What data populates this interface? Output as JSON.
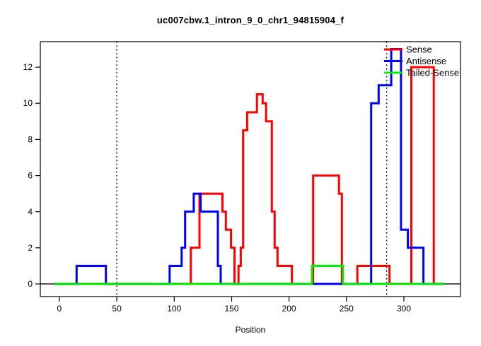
{
  "chart_data": {
    "type": "line",
    "subtype": "step-after",
    "title": "uc007cbw.1_intron_9_0_chr1_94815904_f",
    "xlabel": "Position",
    "ylabel": "",
    "x_ticks": [
      0,
      50,
      100,
      150,
      200,
      250,
      300
    ],
    "y_ticks": [
      0,
      2,
      4,
      6,
      8,
      10,
      12
    ],
    "xlim": [
      -16.6,
      349.3
    ],
    "ylim": [
      -0.7,
      13.41
    ],
    "x_start": -4.5,
    "x_end": 335.5,
    "grid": false,
    "zero_line": true,
    "guide_lines": {
      "style": "dotted",
      "color": "#000000",
      "x_values": [
        50,
        285
      ]
    },
    "legend": {
      "position": "top-right",
      "entries": [
        {
          "label": "Sense",
          "color": "#ff0000"
        },
        {
          "label": "Antisense",
          "color": "#0000ff"
        },
        {
          "label": "Tailed-Sense",
          "color": "#00ee00"
        }
      ]
    },
    "series": [
      {
        "name": "Sense",
        "color": "#ff0000",
        "steps": [
          [
            -4.5,
            0
          ],
          [
            114.5,
            2
          ],
          [
            122,
            5
          ],
          [
            142,
            4
          ],
          [
            145,
            3
          ],
          [
            149.5,
            2
          ],
          [
            152.5,
            0
          ],
          [
            156,
            1
          ],
          [
            158,
            2
          ],
          [
            160,
            8.5
          ],
          [
            163.5,
            9.5
          ],
          [
            172,
            10.5
          ],
          [
            177,
            10
          ],
          [
            180,
            9
          ],
          [
            185,
            4
          ],
          [
            187.5,
            2
          ],
          [
            190,
            1
          ],
          [
            202.5,
            0
          ],
          [
            221,
            6
          ],
          [
            243.5,
            5
          ],
          [
            246,
            0
          ],
          [
            259.5,
            1
          ],
          [
            287.5,
            0
          ],
          [
            306.5,
            12
          ],
          [
            326,
            0
          ]
        ]
      },
      {
        "name": "Antisense",
        "color": "#0000ff",
        "steps": [
          [
            -4.5,
            0
          ],
          [
            15,
            1
          ],
          [
            40.5,
            0
          ],
          [
            96,
            1
          ],
          [
            106.5,
            2
          ],
          [
            109.5,
            4
          ],
          [
            117,
            5
          ],
          [
            123,
            4
          ],
          [
            138,
            1
          ],
          [
            140.5,
            0
          ],
          [
            271.5,
            10
          ],
          [
            278,
            11
          ],
          [
            289,
            13
          ],
          [
            297.5,
            3
          ],
          [
            303.5,
            2
          ],
          [
            317,
            0
          ]
        ]
      },
      {
        "name": "Tailed-Sense",
        "color": "#00ee00",
        "steps": [
          [
            -4.5,
            0
          ],
          [
            220,
            1
          ],
          [
            247,
            0
          ]
        ]
      }
    ]
  }
}
